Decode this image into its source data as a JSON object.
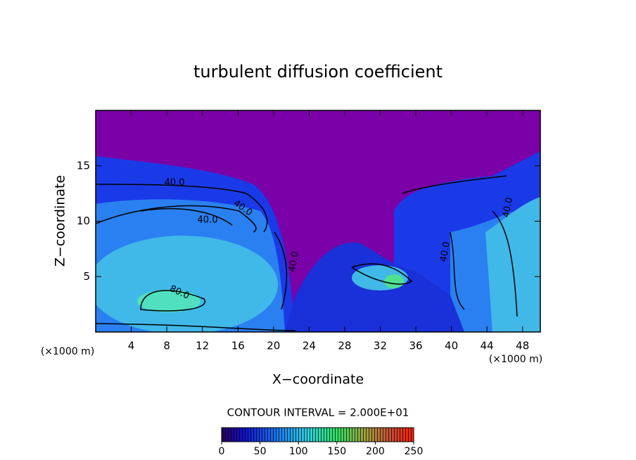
{
  "chart_data": {
    "type": "contour",
    "title": "turbulent diffusion coefficient",
    "xlabel": "X−coordinate",
    "ylabel": "Z−coordinate",
    "x_unit_left": "(×1000 m)",
    "x_unit_right": "(×1000 m)",
    "xlim": [
      0,
      50
    ],
    "xticks": [
      4,
      8,
      12,
      16,
      20,
      24,
      28,
      32,
      36,
      40,
      44,
      48
    ],
    "ylim": [
      0,
      20
    ],
    "yticks": [
      5,
      10,
      15
    ],
    "contour_labels": [
      "40.0",
      "40.0",
      "40.0",
      "80.0",
      "40.0",
      "40.0",
      "40.0"
    ],
    "contour_interval": "CONTOUR INTERVAL = 2.000E+01",
    "clim": [
      0,
      250
    ],
    "cticks": [
      0,
      50,
      100,
      150,
      200,
      250
    ]
  }
}
